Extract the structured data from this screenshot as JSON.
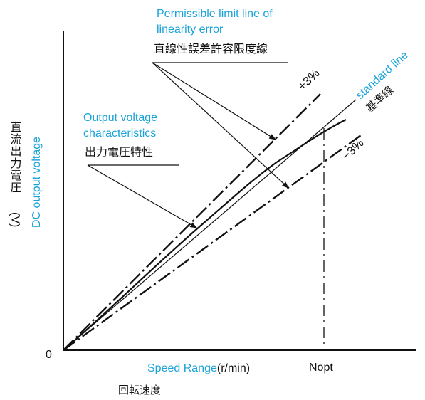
{
  "colors": {
    "accent": "#1aa3d9",
    "ink": "#111111"
  },
  "labels": {
    "limit_en_1": "Permissible limit line of",
    "limit_en_2": "linearity error",
    "limit_jp": "直線性誤差許容限度線",
    "plus": "+3%",
    "minus": "−3%",
    "standard_en": "standard line",
    "standard_jp": "基準線",
    "output_en_1": "Output voltage",
    "output_en_2": "characteristics",
    "output_jp": "出力電圧特性",
    "y_jp": "直流出力電圧",
    "y_unit": "(V)",
    "y_en": "DC output voltage",
    "origin": "0",
    "x_en": "Speed Range",
    "x_unit": "(r/min)",
    "x_jp": "回転速度",
    "nopt": "Nopt"
  }
}
